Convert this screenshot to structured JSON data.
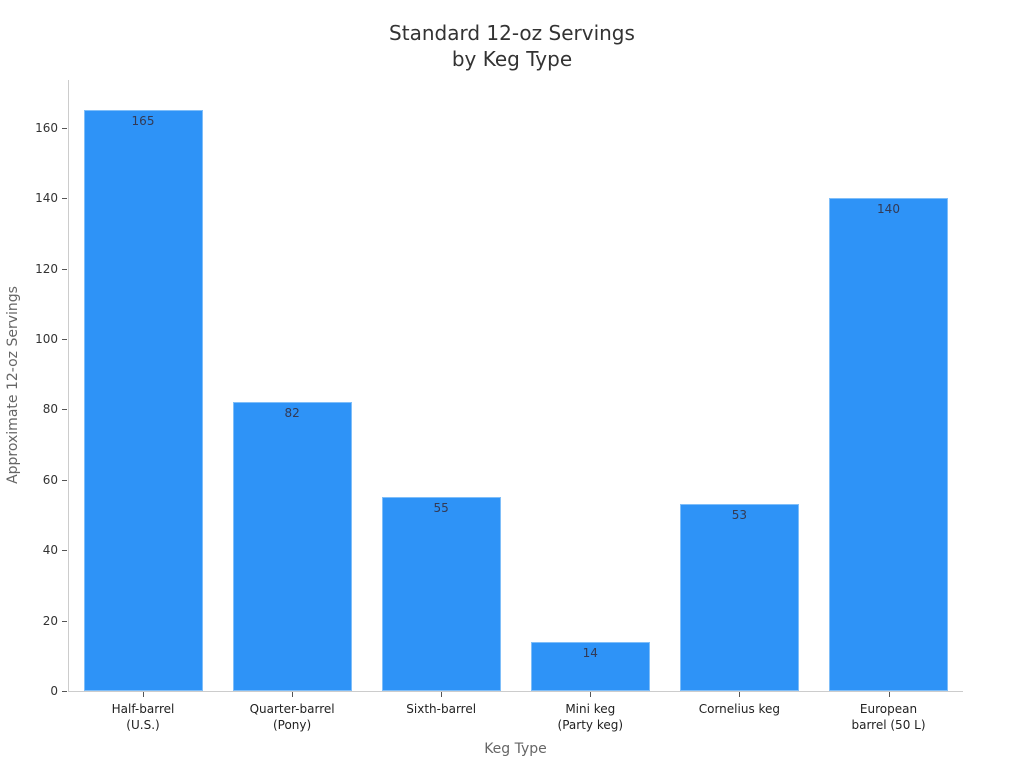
{
  "chart_data": {
    "type": "bar",
    "title": "Standard 12-oz Servings\nby Keg Type",
    "title_lines": [
      "Standard 12-oz Servings",
      "by Keg Type"
    ],
    "xlabel": "Keg Type",
    "ylabel": "Approximate 12-oz Servings",
    "categories": [
      "Half-barrel\n(U.S.)",
      "Quarter-barrel\n(Pony)",
      "Sixth-barrel",
      "Mini keg\n(Party keg)",
      "Cornelius keg",
      "European\nbarrel (50 L)"
    ],
    "values": [
      165,
      82,
      55,
      14,
      53,
      140
    ],
    "value_labels": [
      "165",
      "82",
      "55",
      "14",
      "53",
      "140"
    ],
    "ylim": [
      0,
      173
    ],
    "yticks": [
      0,
      20,
      40,
      60,
      80,
      100,
      120,
      140,
      160
    ],
    "ytick_labels": [
      "0",
      "20",
      "40",
      "60",
      "80",
      "100",
      "120",
      "140",
      "160"
    ],
    "grid": false,
    "legend": null,
    "bar_color": "#2e93f7"
  }
}
